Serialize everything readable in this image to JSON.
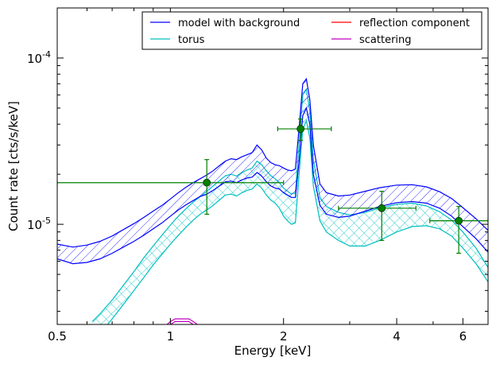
{
  "chart_data": {
    "type": "line",
    "title": "",
    "xlabel": "Energy [keV]",
    "ylabel": "Count rate [cts/s/keV]",
    "xscale": "log",
    "yscale": "log",
    "xlim": [
      0.5,
      7
    ],
    "ylim": [
      2.5e-06,
      0.0002
    ],
    "x_ticks": [
      {
        "value": 0.5,
        "label": "0.5"
      },
      {
        "value": 1,
        "label": "1"
      },
      {
        "value": 2,
        "label": "2"
      },
      {
        "value": 4,
        "label": "4"
      },
      {
        "value": 6,
        "label": "6"
      }
    ],
    "y_ticks": [
      {
        "value": 0.0001,
        "label": "10",
        "exp": "-4"
      },
      {
        "value": 1e-05,
        "label": "10",
        "exp": "-5"
      }
    ],
    "legend": {
      "placement": "top-right",
      "columns": 2,
      "entries": [
        {
          "label": "model with background",
          "color": "#0000ff"
        },
        {
          "label": "reflection component",
          "color": "#ff0000"
        },
        {
          "label": "torus",
          "color": "#00bfbf"
        },
        {
          "label": "scattering",
          "color": "#bf00bf"
        }
      ]
    },
    "series": [
      {
        "name": "model with background",
        "color": "#0000ff",
        "hatch": "diagonal",
        "x": [
          0.5,
          0.55,
          0.6,
          0.65,
          0.7,
          0.75,
          0.8,
          0.85,
          0.9,
          0.95,
          1.0,
          1.05,
          1.1,
          1.15,
          1.2,
          1.25,
          1.3,
          1.35,
          1.4,
          1.45,
          1.5,
          1.55,
          1.6,
          1.65,
          1.7,
          1.75,
          1.8,
          1.85,
          1.9,
          1.95,
          2.0,
          2.05,
          2.1,
          2.15,
          2.2,
          2.25,
          2.3,
          2.35,
          2.4,
          2.5,
          2.6,
          2.8,
          3.0,
          3.3,
          3.6,
          4.0,
          4.4,
          4.8,
          5.2,
          5.6,
          6.0,
          6.5,
          7.0
        ],
        "lower": [
          6.2e-06,
          5.8e-06,
          5.9e-06,
          6.2e-06,
          6.7e-06,
          7.3e-06,
          7.9e-06,
          8.6e-06,
          9.4e-06,
          1.02e-05,
          1.12e-05,
          1.22e-05,
          1.31e-05,
          1.39e-05,
          1.47e-05,
          1.52e-05,
          1.6e-05,
          1.7e-05,
          1.8e-05,
          1.82e-05,
          1.78e-05,
          1.85e-05,
          1.9e-05,
          1.92e-05,
          2.05e-05,
          1.95e-05,
          1.8e-05,
          1.7e-05,
          1.65e-05,
          1.63e-05,
          1.55e-05,
          1.5e-05,
          1.45e-05,
          1.45e-05,
          2.4e-05,
          4.5e-05,
          5e-05,
          4e-05,
          2e-05,
          1.3e-05,
          1.15e-05,
          1.1e-05,
          1.12e-05,
          1.2e-05,
          1.28e-05,
          1.35e-05,
          1.37e-05,
          1.34e-05,
          1.25e-05,
          1.12e-05,
          9.7e-06,
          8.2e-06,
          6.8e-06
        ],
        "upper": [
          7.6e-06,
          7.3e-06,
          7.5e-06,
          7.9e-06,
          8.5e-06,
          9.3e-06,
          1.01e-05,
          1.1e-05,
          1.2e-05,
          1.3e-05,
          1.42e-05,
          1.55e-05,
          1.67e-05,
          1.78e-05,
          1.88e-05,
          1.98e-05,
          2.1e-05,
          2.25e-05,
          2.4e-05,
          2.48e-05,
          2.45e-05,
          2.55e-05,
          2.62e-05,
          2.7e-05,
          3e-05,
          2.8e-05,
          2.5e-05,
          2.35e-05,
          2.28e-05,
          2.25e-05,
          2.18e-05,
          2.12e-05,
          2.1e-05,
          2.15e-05,
          3.8e-05,
          7e-05,
          7.5e-05,
          5.6e-05,
          3e-05,
          1.75e-05,
          1.55e-05,
          1.48e-05,
          1.5e-05,
          1.58e-05,
          1.66e-05,
          1.72e-05,
          1.73e-05,
          1.68e-05,
          1.57e-05,
          1.43e-05,
          1.26e-05,
          1.08e-05,
          9.2e-06
        ]
      },
      {
        "name": "torus",
        "color": "#00bfbf",
        "hatch": "cross",
        "x": [
          0.62,
          0.65,
          0.7,
          0.75,
          0.8,
          0.85,
          0.9,
          0.95,
          1.0,
          1.05,
          1.1,
          1.15,
          1.2,
          1.25,
          1.3,
          1.35,
          1.4,
          1.45,
          1.5,
          1.55,
          1.6,
          1.65,
          1.7,
          1.75,
          1.8,
          1.85,
          1.9,
          1.95,
          2.0,
          2.05,
          2.1,
          2.15,
          2.2,
          2.25,
          2.3,
          2.35,
          2.4,
          2.5,
          2.6,
          2.8,
          3.0,
          3.3,
          3.6,
          4.0,
          4.4,
          4.8,
          5.2,
          5.6,
          6.0,
          6.5,
          7.0
        ],
        "lower": [
          2e-06,
          2.2e-06,
          2.7e-06,
          3.3e-06,
          4e-06,
          4.8e-06,
          5.7e-06,
          6.6e-06,
          7.6e-06,
          8.6e-06,
          9.6e-06,
          1.06e-05,
          1.15e-05,
          1.22e-05,
          1.3e-05,
          1.4e-05,
          1.5e-05,
          1.52e-05,
          1.48e-05,
          1.55e-05,
          1.6e-05,
          1.63e-05,
          1.75e-05,
          1.65e-05,
          1.5e-05,
          1.4e-05,
          1.34e-05,
          1.25e-05,
          1.12e-05,
          1.05e-05,
          1e-05,
          1.02e-05,
          2e-05,
          3.7e-05,
          4.2e-05,
          3.3e-05,
          1.7e-05,
          1.05e-05,
          9e-06,
          8e-06,
          7.4e-06,
          7.4e-06,
          8e-06,
          9e-06,
          9.7e-06,
          9.8e-06,
          9.4e-06,
          8.5e-06,
          7.2e-06,
          5.8e-06,
          4.5e-06
        ],
        "upper": [
          2.6e-06,
          2.9e-06,
          3.5e-06,
          4.3e-06,
          5.2e-06,
          6.3e-06,
          7.4e-06,
          8.6e-06,
          9.9e-06,
          1.12e-05,
          1.24e-05,
          1.36e-05,
          1.47e-05,
          1.58e-05,
          1.7e-05,
          1.83e-05,
          1.96e-05,
          2e-05,
          1.95e-05,
          2.05e-05,
          2.12e-05,
          2.18e-05,
          2.4e-05,
          2.28e-05,
          2.1e-05,
          1.96e-05,
          1.88e-05,
          1.78e-05,
          1.65e-05,
          1.58e-05,
          1.52e-05,
          1.55e-05,
          3.1e-05,
          6e-05,
          6.5e-05,
          4.8e-05,
          2.45e-05,
          1.45e-05,
          1.28e-05,
          1.18e-05,
          1.14e-05,
          1.18e-05,
          1.25e-05,
          1.32e-05,
          1.34e-05,
          1.29e-05,
          1.19e-05,
          1.06e-05,
          9e-06,
          7.2e-06,
          5.5e-06
        ]
      },
      {
        "name": "scattering",
        "color": "#bf00bf",
        "x": [
          0.98,
          1.0,
          1.03,
          1.06,
          1.09,
          1.12,
          1.15,
          1.18
        ],
        "lower": [
          2.4e-06,
          2.5e-06,
          2.6e-06,
          2.6e-06,
          2.6e-06,
          2.6e-06,
          2.5e-06,
          2.4e-06
        ],
        "upper": [
          2.5e-06,
          2.6e-06,
          2.7e-06,
          2.7e-06,
          2.7e-06,
          2.7e-06,
          2.6e-06,
          2.5e-06
        ]
      },
      {
        "name": "reflection component",
        "color": "#ff0000",
        "x": [],
        "values": []
      }
    ],
    "data_points": {
      "color": "#008000",
      "points": [
        {
          "x": 1.25,
          "y": 1.78e-05,
          "xerr": [
            0.5,
            2.0
          ],
          "yerr": [
            1.15e-05,
            2.45e-05
          ]
        },
        {
          "x": 2.22,
          "y": 3.75e-05,
          "xerr": [
            1.93,
            2.68
          ],
          "yerr": [
            3.2e-05,
            4.3e-05
          ]
        },
        {
          "x": 3.65,
          "y": 1.25e-05,
          "xerr": [
            2.8,
            4.5
          ],
          "yerr": [
            8e-06,
            1.58e-05
          ]
        },
        {
          "x": 5.85,
          "y": 1.05e-05,
          "xerr": [
            4.9,
            7.0
          ],
          "yerr": [
            6.7e-06,
            1.28e-05
          ]
        }
      ]
    }
  }
}
